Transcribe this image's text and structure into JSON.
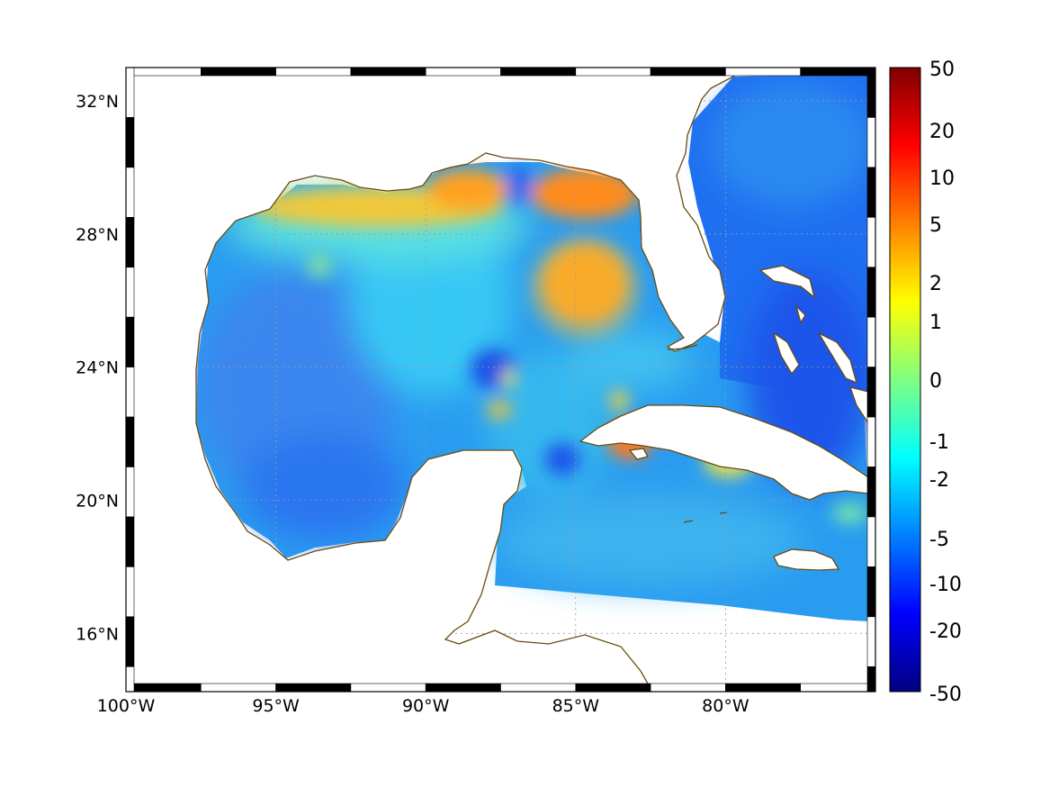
{
  "map": {
    "lon_range": [
      -100,
      -75
    ],
    "lat_range": [
      14.25,
      33
    ],
    "lon_ticks": [
      {
        "value": -100,
        "label": "100°W"
      },
      {
        "value": -95,
        "label": "95°W"
      },
      {
        "value": -90,
        "label": "90°W"
      },
      {
        "value": -85,
        "label": "85°W"
      },
      {
        "value": -80,
        "label": "80°W"
      }
    ],
    "lat_ticks": [
      {
        "value": 32,
        "label": "32°N"
      },
      {
        "value": 28,
        "label": "28°N"
      },
      {
        "value": 24,
        "label": "24°N"
      },
      {
        "value": 20,
        "label": "20°N"
      },
      {
        "value": 16,
        "label": "16°N"
      }
    ],
    "grid": true,
    "coastline_color": "#6b4a10",
    "land_color": "#ffffff",
    "colormap": "jet"
  },
  "colorbar": {
    "placement": "right",
    "labels": [
      "50",
      "20",
      "10",
      "5",
      "2",
      "1",
      "0",
      "-1",
      "-2",
      "-5",
      "-10",
      "-20",
      "-50"
    ],
    "colors": [
      "#800000",
      "#ff0000",
      "#ff8000",
      "#ffff00",
      "#80ff80",
      "#00ffff",
      "#0080ff",
      "#0000ff",
      "#000080"
    ]
  }
}
